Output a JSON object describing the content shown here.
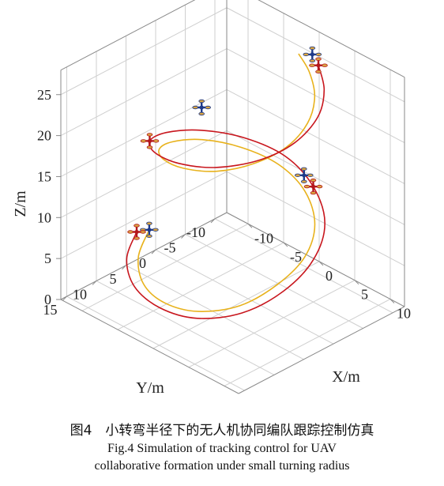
{
  "chart_data": {
    "type": "line",
    "subtype": "3d-trajectory",
    "xlabel": "X/m",
    "ylabel": "Y/m",
    "zlabel": "Z/m",
    "x_ticks": [
      "-10",
      "-5",
      "0",
      "5",
      "10"
    ],
    "y_ticks": [
      "-10",
      "-5",
      "0",
      "5",
      "10",
      "15"
    ],
    "z_ticks": [
      "0",
      "5",
      "10",
      "15",
      "20",
      "25"
    ],
    "xlim": [
      -13,
      12
    ],
    "ylim": [
      -12,
      16
    ],
    "zlim": [
      0,
      28
    ],
    "grid": true,
    "series": [
      {
        "color": "#e8b21c",
        "points": [
          [
            -12.4,
            1.8,
            3.4
          ],
          [
            -10.6,
            5.8,
            2.4
          ],
          [
            -7.2,
            9.0,
            1.9
          ],
          [
            -3.0,
            10.5,
            2.1
          ],
          [
            1.5,
            10.2,
            3.0
          ],
          [
            5.5,
            8.0,
            4.7
          ],
          [
            7.6,
            4.2,
            6.8
          ],
          [
            7.8,
            -0.2,
            8.6
          ],
          [
            5.8,
            -4.3,
            10.1
          ],
          [
            2.0,
            -7.2,
            11.3
          ],
          [
            -2.5,
            -8.2,
            12.1
          ],
          [
            -6.8,
            -7.0,
            12.7
          ],
          [
            -9.8,
            -4.0,
            13.4
          ],
          [
            -10.5,
            0.2,
            14.4
          ],
          [
            -9.0,
            4.2,
            15.7
          ],
          [
            -5.8,
            7.3,
            17.1
          ],
          [
            -1.6,
            9.0,
            18.6
          ],
          [
            2.8,
            8.6,
            20.1
          ],
          [
            6.0,
            6.2,
            21.6
          ],
          [
            7.6,
            2.6,
            23.0
          ],
          [
            7.2,
            -1.4,
            24.2
          ],
          [
            5.2,
            -5.0,
            25.1
          ],
          [
            2.3,
            -7.6,
            25.8
          ],
          [
            -0.4,
            -9.0,
            26.3
          ]
        ],
        "markers": [
          [
            -1.3,
            -11.0,
            10.3
          ],
          [
            -9.2,
            -3.2,
            17.9
          ],
          [
            1.2,
            -9.4,
            26.8
          ]
        ]
      },
      {
        "color": "#c8161d",
        "points": [
          [
            -13.0,
            3.2,
            3.4
          ],
          [
            -11.4,
            6.8,
            2.2
          ],
          [
            -7.8,
            9.8,
            1.6
          ],
          [
            -3.0,
            11.3,
            1.8
          ],
          [
            2.0,
            11.0,
            2.7
          ],
          [
            6.4,
            8.7,
            4.5
          ],
          [
            8.8,
            4.6,
            6.7
          ],
          [
            9.0,
            -0.2,
            8.8
          ],
          [
            6.8,
            -4.8,
            10.5
          ],
          [
            2.5,
            -8.0,
            11.8
          ],
          [
            -2.5,
            -9.3,
            12.7
          ],
          [
            -7.2,
            -8.0,
            13.3
          ],
          [
            -10.5,
            -4.6,
            14.0
          ],
          [
            -11.5,
            0.0,
            15.0
          ],
          [
            -10.0,
            4.6,
            16.4
          ],
          [
            -6.4,
            8.0,
            17.9
          ],
          [
            -1.6,
            9.8,
            19.5
          ],
          [
            3.3,
            9.4,
            21.1
          ],
          [
            7.0,
            6.6,
            22.6
          ],
          [
            8.7,
            2.6,
            24.0
          ],
          [
            8.3,
            -1.8,
            25.3
          ],
          [
            6.2,
            -5.4,
            26.3
          ],
          [
            3.3,
            -7.9,
            27.0
          ]
        ]
      }
    ]
  },
  "caption": {
    "cn": "图4　小转弯半径下的无人机协同编队跟踪控制仿真",
    "en_line1": "Fig.4    Simulation of tracking control for UAV",
    "en_line2": "collaborative formation under small turning radius"
  }
}
